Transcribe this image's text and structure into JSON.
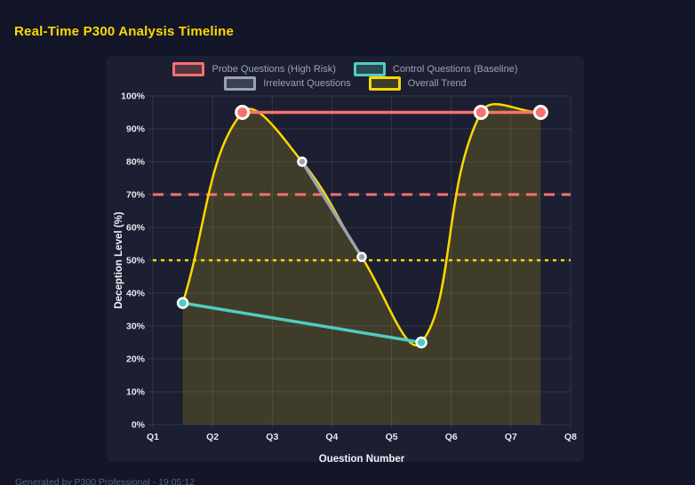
{
  "page": {
    "title": "Real-Time P300 Analysis Timeline",
    "footer": "Generated by P300 Professional - 19:05:12",
    "colors": {
      "background": "#131629",
      "panel": "#1b1f31",
      "title": "#ffd700",
      "tick_label": "#e6e8ed",
      "legend_label": "#9ca3af",
      "grid": "rgba(255,255,255,0.10)",
      "point_border": "#ffffff"
    }
  },
  "chart_data": {
    "type": "line",
    "title": "Real-Time P300 Analysis Timeline",
    "xlabel": "Question Number",
    "ylabel": "Deception Level (%)",
    "x_ticks": [
      "Q1",
      "Q2",
      "Q3",
      "Q4",
      "Q5",
      "Q6",
      "Q7",
      "Q8"
    ],
    "x_range": [
      1,
      8
    ],
    "ylim": [
      0,
      100
    ],
    "y_ticks": [
      "0%",
      "10%",
      "20%",
      "30%",
      "40%",
      "50%",
      "60%",
      "70%",
      "80%",
      "90%",
      "100%"
    ],
    "y_tick_values": [
      0,
      10,
      20,
      30,
      40,
      50,
      60,
      70,
      80,
      90,
      100
    ],
    "grid": true,
    "legend_position": "top",
    "tension": 0.4,
    "series": [
      {
        "id": "probe",
        "name": "Probe Questions (High Risk)",
        "color": "#f87171",
        "x": [
          2.5,
          6.5,
          7.5
        ],
        "values": [
          95,
          95,
          95
        ],
        "line_width": 3.5,
        "point_radius": 7,
        "point_border_width": 3,
        "smooth": false,
        "fill": false
      },
      {
        "id": "control",
        "name": "Control Questions (Baseline)",
        "color": "#4ecdc4",
        "x": [
          1.5,
          5.5
        ],
        "values": [
          37,
          25
        ],
        "line_width": 3.5,
        "point_radius": 5.5,
        "point_border_width": 2.5,
        "smooth": false,
        "fill": false
      },
      {
        "id": "irrelevant",
        "name": "Irrelevant Questions",
        "color": "#9ca3af",
        "x": [
          3.5,
          4.5
        ],
        "values": [
          80,
          51
        ],
        "line_width": 3.5,
        "point_radius": 4.5,
        "point_border_width": 2.5,
        "smooth": false,
        "fill": false
      },
      {
        "id": "trend",
        "name": "Overall Trend",
        "color": "#ffd700",
        "x": [
          1.5,
          2.5,
          3.5,
          4.5,
          5.5,
          6.5,
          7.5
        ],
        "values": [
          37,
          95,
          80,
          51,
          25,
          95,
          95
        ],
        "line_width": 2.5,
        "point_radius": 0,
        "point_border_width": 0,
        "smooth": true,
        "fill": true,
        "fill_color": "rgba(255,215,0,0.16)"
      }
    ],
    "thresholds": [
      {
        "id": "high-risk",
        "value": 70,
        "color": "#f87171",
        "dash": [
          12,
          8
        ],
        "width": 3
      },
      {
        "id": "baseline",
        "value": 50,
        "color": "#ffd700",
        "dash": [
          4,
          5
        ],
        "width": 2.5
      }
    ]
  }
}
